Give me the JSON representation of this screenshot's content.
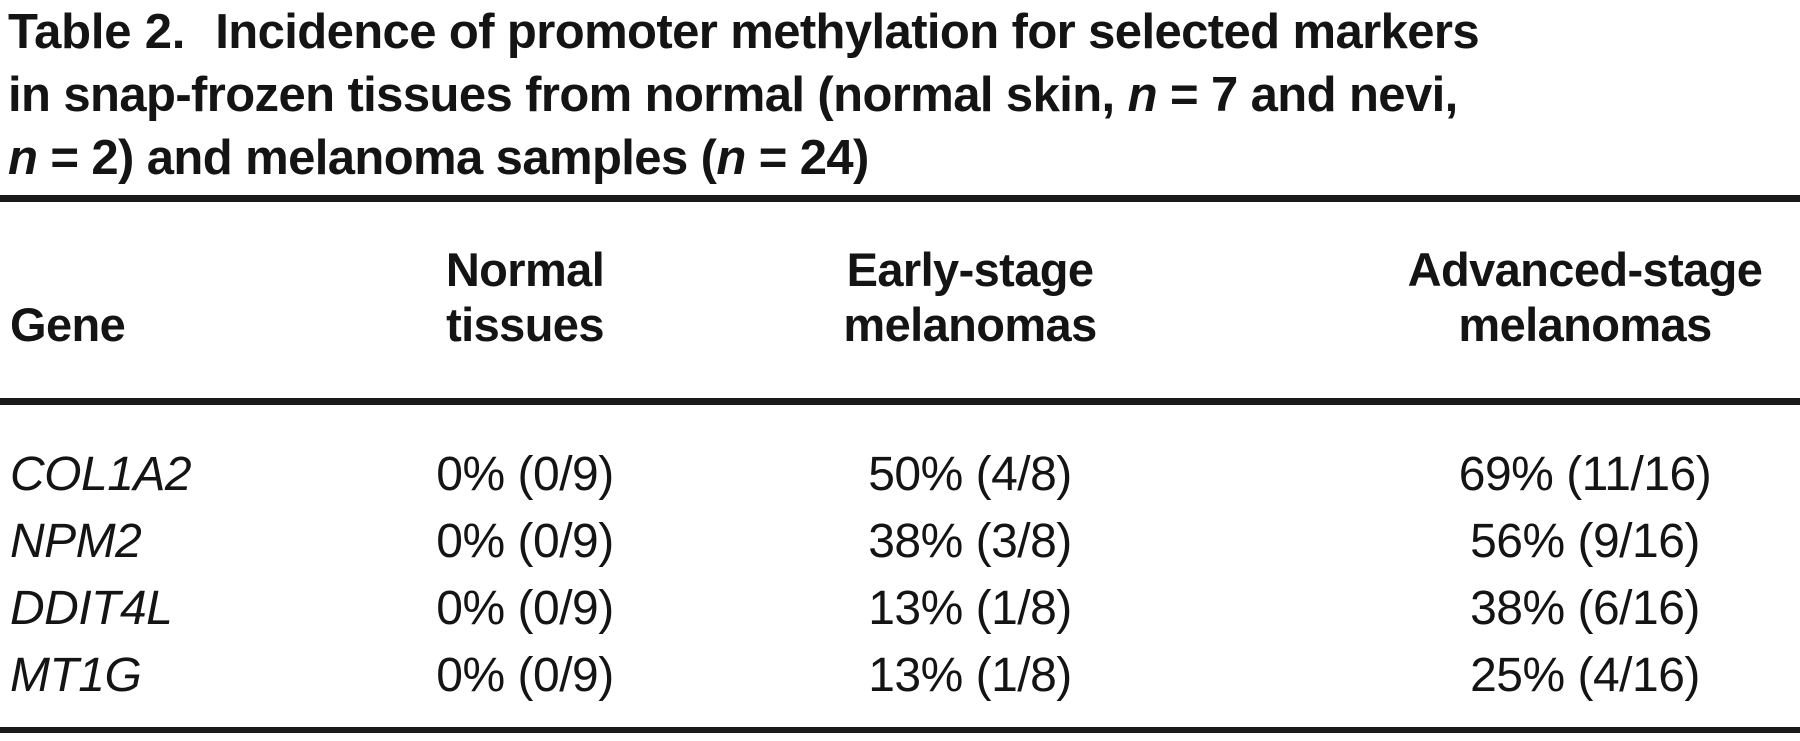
{
  "figure": {
    "caption": {
      "label": "Table 2.",
      "lines": [
        [
          {
            "t": "Incidence of promoter methylation for selected markers"
          }
        ],
        [
          {
            "t": "in snap-frozen tissues from normal (normal skin, "
          },
          {
            "t": "n",
            "i": true
          },
          {
            "t": " = 7 and nevi,"
          }
        ],
        [
          {
            "t": "n",
            "i": true
          },
          {
            "t": " = 2) and melanoma samples ("
          },
          {
            "t": "n",
            "i": true
          },
          {
            "t": " = 24)"
          }
        ]
      ]
    },
    "columns": [
      {
        "key": "gene",
        "label": "Gene"
      },
      {
        "key": "normal",
        "label": "Normal\ntissues"
      },
      {
        "key": "early",
        "label": "Early-stage\nmelanomas"
      },
      {
        "key": "advanced",
        "label": "Advanced-stage\nmelanomas"
      }
    ],
    "rows": [
      {
        "gene": "COL1A2",
        "normal": "0% (0/9)",
        "early": "50% (4/8)",
        "advanced": "69% (11/16)"
      },
      {
        "gene": "NPM2",
        "normal": "0% (0/9)",
        "early": "38% (3/8)",
        "advanced": "56% (9/16)"
      },
      {
        "gene": "DDIT4L",
        "normal": "0% (0/9)",
        "early": "13% (1/8)",
        "advanced": "38% (6/16)"
      },
      {
        "gene": "MT1G",
        "normal": "0% (0/9)",
        "early": "13% (1/8)",
        "advanced": "25% (4/16)"
      }
    ],
    "colors": {
      "text": "#141414",
      "rule": "#1a1a1a",
      "background": "#ffffff"
    }
  },
  "chart_data": {
    "type": "table",
    "title": "Table 2. Incidence of promoter methylation for selected markers in snap-frozen tissues from normal (normal skin, n = 7 and nevi, n = 2) and melanoma samples (n = 24)",
    "columns": [
      "Gene",
      "Normal tissues",
      "Early-stage melanomas",
      "Advanced-stage melanomas"
    ],
    "rows": [
      [
        "COL1A2",
        "0% (0/9)",
        "50% (4/8)",
        "69% (11/16)"
      ],
      [
        "NPM2",
        "0% (0/9)",
        "38% (3/8)",
        "56% (9/16)"
      ],
      [
        "DDIT4L",
        "0% (0/9)",
        "13% (1/8)",
        "38% (6/16)"
      ],
      [
        "MT1G",
        "0% (0/9)",
        "13% (1/8)",
        "25% (4/16)"
      ]
    ],
    "percent_values": {
      "categories": [
        "COL1A2",
        "NPM2",
        "DDIT4L",
        "MT1G"
      ],
      "series": [
        {
          "name": "Normal tissues",
          "values": [
            0,
            0,
            0,
            0
          ],
          "n": [
            9,
            9,
            9,
            9
          ]
        },
        {
          "name": "Early-stage melanomas",
          "values": [
            50,
            38,
            13,
            13
          ],
          "n": [
            8,
            8,
            8,
            8
          ]
        },
        {
          "name": "Advanced-stage melanomas",
          "values": [
            69,
            56,
            38,
            25
          ],
          "n": [
            16,
            16,
            16,
            16
          ]
        }
      ]
    }
  }
}
